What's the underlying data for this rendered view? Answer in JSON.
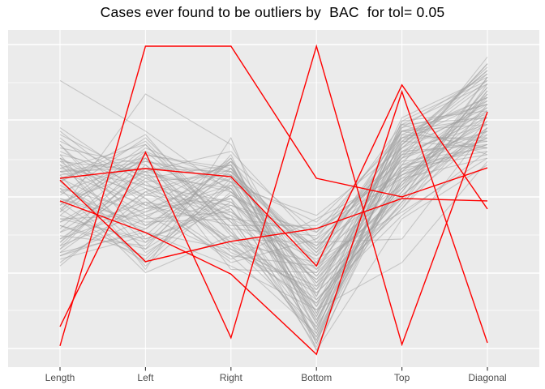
{
  "title": "Cases ever found to be outliers by  BAC  for tol= 0.05",
  "colors": {
    "panel_bg": "#EBEBEB",
    "grid": "#FFFFFF",
    "background_line": "#A0A0A0",
    "outlier_line": "#FF0000",
    "title_text": "#000000",
    "axis_text": "#4D4D4D",
    "tick": "#333333"
  },
  "chart_data": {
    "type": "line",
    "variant": "parallel-coordinates",
    "title": "Cases ever found to be outliers by  BAC  for tol= 0.05",
    "axes": [
      "Length",
      "Left",
      "Right",
      "Bottom",
      "Top",
      "Diagonal"
    ],
    "y_scale": "min-max normalized per variable (0 = panel bottom, 1 = panel top)",
    "grid": "on",
    "legend": "none",
    "n_outlier_cases": 5,
    "n_background_cases": 74,
    "outlier_cases": [
      [
        0.063,
        0.952,
        0.952,
        0.56,
        0.505,
        0.591
      ],
      [
        0.12,
        0.637,
        0.087,
        0.952,
        0.067,
        0.757
      ],
      [
        0.56,
        0.589,
        0.565,
        0.3,
        0.837,
        0.469
      ],
      [
        0.493,
        0.399,
        0.276,
        0.038,
        0.817,
        0.072
      ],
      [
        0.555,
        0.313,
        0.373,
        0.411,
        0.5,
        0.493
      ]
    ],
    "background_cases": [
      [
        0.52,
        0.61,
        0.55,
        0.25,
        0.62,
        0.76
      ],
      [
        0.44,
        0.38,
        0.47,
        0.12,
        0.55,
        0.68
      ],
      [
        0.61,
        0.45,
        0.33,
        0.3,
        0.5,
        0.84
      ],
      [
        0.35,
        0.52,
        0.6,
        0.18,
        0.7,
        0.72
      ],
      [
        0.48,
        0.66,
        0.41,
        0.08,
        0.58,
        0.81
      ],
      [
        0.57,
        0.3,
        0.52,
        0.35,
        0.64,
        0.66
      ],
      [
        0.4,
        0.57,
        0.36,
        0.22,
        0.47,
        0.78
      ],
      [
        0.66,
        0.42,
        0.58,
        0.15,
        0.66,
        0.88
      ],
      [
        0.31,
        0.49,
        0.44,
        0.41,
        0.56,
        0.62
      ],
      [
        0.55,
        0.35,
        0.63,
        0.1,
        0.72,
        0.74
      ],
      [
        0.47,
        0.62,
        0.29,
        0.28,
        0.52,
        0.86
      ],
      [
        0.62,
        0.47,
        0.5,
        0.05,
        0.6,
        0.7
      ],
      [
        0.38,
        0.55,
        0.57,
        0.33,
        0.68,
        0.8
      ],
      [
        0.53,
        0.28,
        0.39,
        0.2,
        0.45,
        0.64
      ],
      [
        0.45,
        0.64,
        0.53,
        0.14,
        0.63,
        0.9
      ],
      [
        0.7,
        0.5,
        0.31,
        0.38,
        0.57,
        0.73
      ],
      [
        0.33,
        0.41,
        0.61,
        0.07,
        0.69,
        0.67
      ],
      [
        0.58,
        0.59,
        0.46,
        0.26,
        0.53,
        0.83
      ],
      [
        0.42,
        0.33,
        0.54,
        0.45,
        0.65,
        0.77
      ],
      [
        0.64,
        0.53,
        0.37,
        0.17,
        0.49,
        0.69
      ],
      [
        0.36,
        0.46,
        0.59,
        0.31,
        0.71,
        0.87
      ],
      [
        0.51,
        0.68,
        0.43,
        0.09,
        0.59,
        0.63
      ],
      [
        0.6,
        0.37,
        0.51,
        0.36,
        0.67,
        0.79
      ],
      [
        0.43,
        0.58,
        0.34,
        0.23,
        0.51,
        0.71
      ],
      [
        0.56,
        0.44,
        0.62,
        0.13,
        0.73,
        0.85
      ],
      [
        0.3,
        0.51,
        0.48,
        0.4,
        0.61,
        0.65
      ],
      [
        0.65,
        0.6,
        0.4,
        0.19,
        0.54,
        0.75
      ],
      [
        0.49,
        0.32,
        0.56,
        0.29,
        0.66,
        0.89
      ],
      [
        0.59,
        0.54,
        0.45,
        0.06,
        0.57,
        0.68
      ],
      [
        0.41,
        0.63,
        0.58,
        0.34,
        0.7,
        0.78
      ],
      [
        0.54,
        0.4,
        0.35,
        0.24,
        0.48,
        0.82
      ],
      [
        0.37,
        0.56,
        0.6,
        0.11,
        0.64,
        0.72
      ],
      [
        0.68,
        0.48,
        0.42,
        0.42,
        0.58,
        0.66
      ],
      [
        0.46,
        0.65,
        0.55,
        0.16,
        0.72,
        0.84
      ],
      [
        0.63,
        0.34,
        0.49,
        0.27,
        0.55,
        0.76
      ],
      [
        0.34,
        0.52,
        0.38,
        0.37,
        0.62,
        0.7
      ],
      [
        0.57,
        0.61,
        0.57,
        0.08,
        0.67,
        0.88
      ],
      [
        0.5,
        0.43,
        0.44,
        0.32,
        0.46,
        0.62
      ],
      [
        0.61,
        0.58,
        0.52,
        0.21,
        0.69,
        0.8
      ],
      [
        0.39,
        0.36,
        0.59,
        0.14,
        0.56,
        0.74
      ],
      [
        0.55,
        0.67,
        0.41,
        0.39,
        0.63,
        0.67
      ],
      [
        0.44,
        0.45,
        0.53,
        0.25,
        0.5,
        0.86
      ],
      [
        0.67,
        0.55,
        0.36,
        0.12,
        0.71,
        0.78
      ],
      [
        0.32,
        0.39,
        0.61,
        0.3,
        0.6,
        0.64
      ],
      [
        0.58,
        0.62,
        0.47,
        0.18,
        0.52,
        0.82
      ],
      [
        0.47,
        0.31,
        0.55,
        0.43,
        0.68,
        0.75
      ],
      [
        0.62,
        0.5,
        0.33,
        0.1,
        0.59,
        0.69
      ],
      [
        0.36,
        0.59,
        0.58,
        0.35,
        0.65,
        0.87
      ],
      [
        0.52,
        0.42,
        0.5,
        0.22,
        0.47,
        0.73
      ],
      [
        0.59,
        0.66,
        0.39,
        0.28,
        0.7,
        0.65
      ],
      [
        0.45,
        0.37,
        0.62,
        0.16,
        0.61,
        0.79
      ],
      [
        0.69,
        0.56,
        0.45,
        0.33,
        0.53,
        0.71
      ],
      [
        0.38,
        0.47,
        0.56,
        0.07,
        0.66,
        0.85
      ],
      [
        0.56,
        0.64,
        0.43,
        0.26,
        0.58,
        0.77
      ],
      [
        0.42,
        0.35,
        0.51,
        0.38,
        0.72,
        0.63
      ],
      [
        0.6,
        0.51,
        0.6,
        0.2,
        0.49,
        0.81
      ],
      [
        0.35,
        0.6,
        0.37,
        0.31,
        0.63,
        0.74
      ],
      [
        0.53,
        0.46,
        0.54,
        0.13,
        0.68,
        0.68
      ],
      [
        0.66,
        0.38,
        0.48,
        0.36,
        0.54,
        0.83
      ],
      [
        0.48,
        0.63,
        0.59,
        0.24,
        0.62,
        0.9
      ],
      [
        0.4,
        0.49,
        0.32,
        0.44,
        0.57,
        0.66
      ],
      [
        0.63,
        0.57,
        0.53,
        0.15,
        0.73,
        0.76
      ],
      [
        0.33,
        0.44,
        0.46,
        0.29,
        0.51,
        0.7
      ],
      [
        0.55,
        0.69,
        0.4,
        0.09,
        0.65,
        0.84
      ],
      [
        0.5,
        0.41,
        0.57,
        0.34,
        0.59,
        0.72
      ],
      [
        0.71,
        0.54,
        0.49,
        0.23,
        0.67,
        0.65
      ],
      [
        0.37,
        0.62,
        0.35,
        0.19,
        0.55,
        0.8
      ],
      [
        0.58,
        0.48,
        0.61,
        0.4,
        0.7,
        0.74
      ],
      [
        0.85,
        0.7,
        0.52,
        0.27,
        0.6,
        0.92
      ],
      [
        0.43,
        0.53,
        0.44,
        0.11,
        0.64,
        0.78
      ],
      [
        0.46,
        0.81,
        0.66,
        0.21,
        0.74,
        0.86
      ],
      [
        0.62,
        0.29,
        0.68,
        0.05,
        0.44,
        0.6
      ],
      [
        0.34,
        0.4,
        0.3,
        0.17,
        0.31,
        0.61
      ],
      [
        0.49,
        0.58,
        0.64,
        0.37,
        0.38,
        0.71
      ]
    ]
  }
}
